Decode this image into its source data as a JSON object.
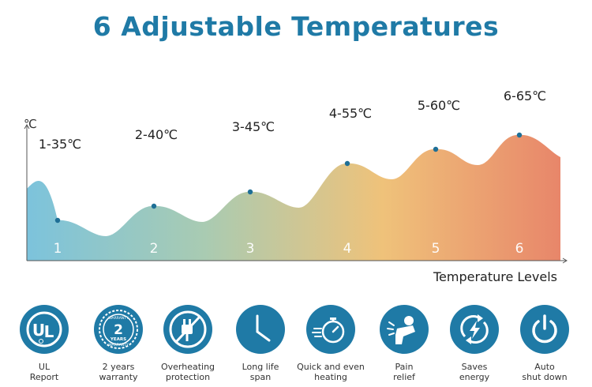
{
  "title": "6 Adjustable Temperatures",
  "chart_data": {
    "type": "area",
    "x": [
      1,
      2,
      3,
      4,
      5,
      6
    ],
    "values": [
      35,
      40,
      45,
      55,
      60,
      65
    ],
    "point_labels": [
      "1-35℃",
      "2-40℃",
      "3-45℃",
      "4-55℃",
      "5-60℃",
      "6-65℃"
    ],
    "level_labels": [
      "1",
      "2",
      "3",
      "4",
      "5",
      "6"
    ],
    "ylabel": "℃",
    "xlabel": "Temperature Levels",
    "grid": false,
    "gradient_colors": [
      "#7cc3dc",
      "#a9cbb2",
      "#efc27a",
      "#e8866a"
    ],
    "marker_color": "#1f6f96"
  },
  "features": [
    {
      "icon": "ul-certification-icon",
      "label": "UL\nReport"
    },
    {
      "icon": "warranty-badge-icon",
      "label": "2 years\nwarranty",
      "badge_text": "2",
      "badge_sub": "YEARS",
      "badge_top": "WARRANTY",
      "badge_bottom": "WARRANTY"
    },
    {
      "icon": "no-plug-icon",
      "label": "Overheating\nprotection"
    },
    {
      "icon": "clock-icon",
      "label": "Long life\nspan"
    },
    {
      "icon": "stopwatch-icon",
      "label": "Quick and even\nheating"
    },
    {
      "icon": "pain-relief-icon",
      "label": "Pain\nrelief"
    },
    {
      "icon": "energy-saving-icon",
      "label": "Saves\nenergy"
    },
    {
      "icon": "power-icon",
      "label": "Auto\nshut down"
    }
  ],
  "colors": {
    "accent": "#1f7aa6"
  }
}
